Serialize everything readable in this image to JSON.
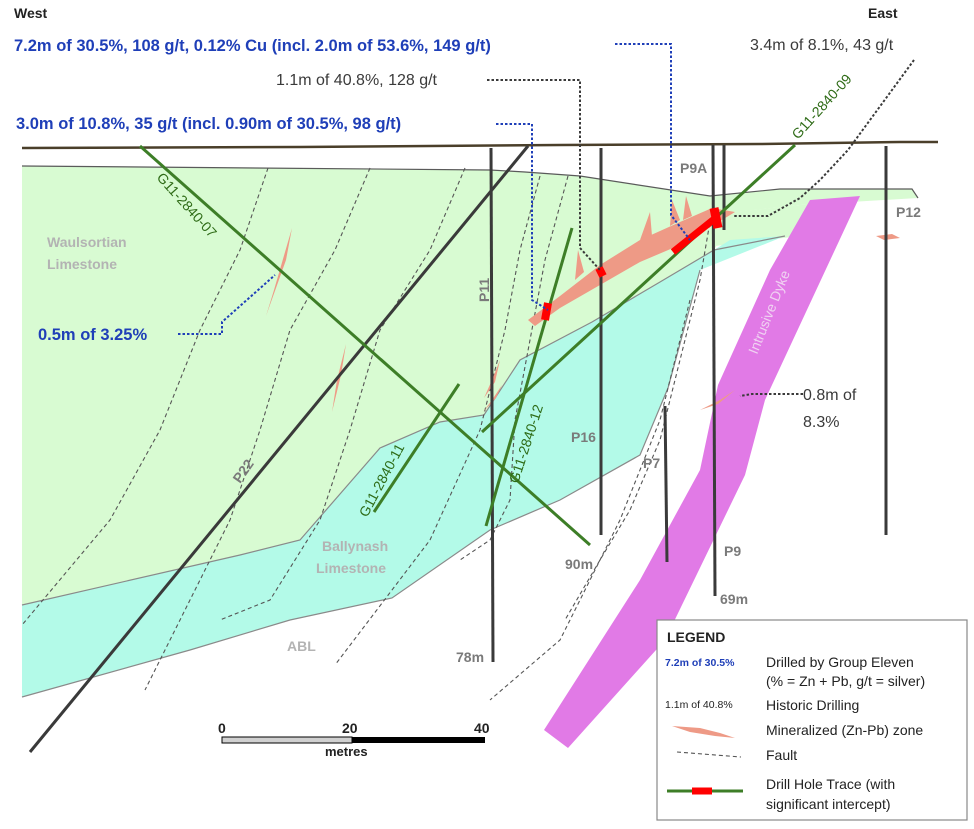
{
  "directions": {
    "west": "West",
    "east": "East"
  },
  "callouts": {
    "c1": "7.2m of 30.5%, 108 g/t, 0.12% Cu (incl. 2.0m of 53.6%, 149 g/t)",
    "c2": "1.1m of 40.8%, 128 g/t",
    "c3": "3.0m of 10.8%, 35 g/t (incl. 0.90m of 30.5%, 98 g/t)",
    "c4": "3.4m of 8.1%, 43 g/t",
    "c5": "0.5m of 3.25%",
    "c6_line1": "0.8m of",
    "c6_line2": "8.3%"
  },
  "units": {
    "waulsortian_1": "Waulsortian",
    "waulsortian_2": "Limestone",
    "ballynash_1": "Ballynash",
    "ballynash_2": "Limestone",
    "abl": "ABL",
    "dyke": "Intrusive Dyke"
  },
  "holes": {
    "g07": "G11-2840-07",
    "g09": "G11-2840-09",
    "g11": "G11-2840-11",
    "g12": "G11-2840-12",
    "p22": "P22",
    "p11": "P11",
    "p16": "P16",
    "p7": "P7",
    "p9": "P9",
    "p9a": "P9A",
    "p12": "P12"
  },
  "depths": {
    "d90": "90m",
    "d78": "78m",
    "d69": "69m"
  },
  "scale": {
    "s0": "0",
    "s20": "20",
    "s40": "40",
    "unit": "metres"
  },
  "legend": {
    "title": "LEGEND",
    "gen_sample": "7.2m of 30.5%",
    "gen_line1": "Drilled by Group Eleven",
    "gen_line2": "(% = Zn + Pb, g/t = silver)",
    "hist_sample": "1.1m of 40.8%",
    "hist_label": "Historic Drilling",
    "mineral": "Mineralized (Zn-Pb) zone",
    "fault": "Fault",
    "trace_line1": "Drill Hole Trace (with",
    "trace_line2": "significant intercept)"
  },
  "colors": {
    "waulsortian": "#d8fbd2",
    "ballynash": "#b3fae8",
    "dyke": "#e17ae6",
    "mineral": "#ee9a86",
    "intercept": "#ff0000",
    "gen_hole": "#3d7e27",
    "hist_hole": "#3a3a3a",
    "gen_text": "#1f3fb8"
  }
}
